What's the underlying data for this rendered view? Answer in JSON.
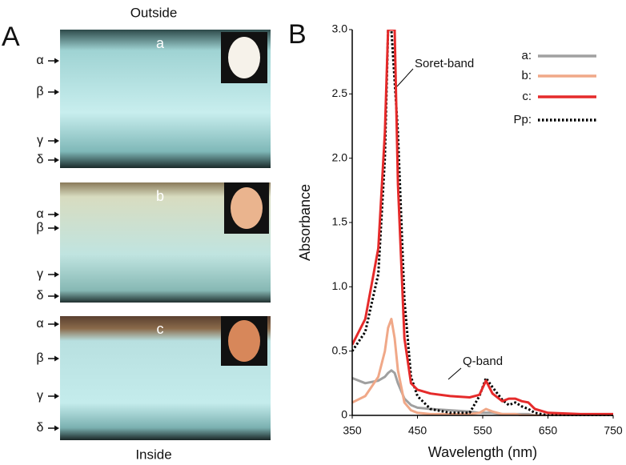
{
  "panel_a": {
    "panel_label": "A",
    "top_label": "Outside",
    "bottom_label": "Inside",
    "samples": [
      {
        "label": "a",
        "layers": [
          "α",
          "β",
          "γ",
          "δ"
        ]
      },
      {
        "label": "b",
        "layers": [
          "α",
          "β",
          "γ",
          "δ"
        ]
      },
      {
        "label": "c",
        "layers": [
          "α",
          "β",
          "γ",
          "δ"
        ]
      }
    ]
  },
  "chart_data": {
    "type": "line",
    "panel_label": "B",
    "x_label": "Wavelength (nm)",
    "y_label": "Absorbance",
    "x": [
      350,
      370,
      390,
      400,
      405,
      410,
      415,
      420,
      430,
      440,
      450,
      470,
      500,
      530,
      545,
      555,
      565,
      580,
      590,
      600,
      610,
      620,
      630,
      650,
      700,
      750
    ],
    "xlim": [
      350,
      750
    ],
    "xticks": [
      350,
      450,
      550,
      650,
      750
    ],
    "ylim": [
      0,
      3
    ],
    "yticks": [
      0,
      0.5,
      {
        "value": 1,
        "label": "1.0"
      },
      1.5,
      {
        "value": 2,
        "label": "2.0"
      },
      2.5,
      {
        "value": 3,
        "label": "3.0"
      }
    ],
    "annotations": [
      "Soret-band",
      "Q-band"
    ],
    "legend": "upper right",
    "series": [
      {
        "name": "a:",
        "color": "#a0a0a0",
        "line_style": "solid",
        "values": [
          0.29,
          0.25,
          0.27,
          0.3,
          0.33,
          0.35,
          0.33,
          0.25,
          0.13,
          0.08,
          0.06,
          0.05,
          0.04,
          0.03,
          0.02,
          0.02,
          0.02,
          0.01,
          0.01,
          0.01,
          0.01,
          0.01,
          0,
          0,
          0,
          0
        ]
      },
      {
        "name": "b:",
        "color": "#f0a888",
        "line_style": "solid",
        "values": [
          0.1,
          0.15,
          0.3,
          0.5,
          0.68,
          0.75,
          0.6,
          0.35,
          0.1,
          0.04,
          0.02,
          0.01,
          0.01,
          0.01,
          0.02,
          0.05,
          0.03,
          0.01,
          0.01,
          0.01,
          0,
          0,
          0,
          0,
          0,
          0
        ]
      },
      {
        "name": "c:",
        "color": "#e52a2a",
        "line_style": "solid",
        "values": [
          0.55,
          0.75,
          1.3,
          2.2,
          3.0,
          3.0,
          3.0,
          1.8,
          0.6,
          0.25,
          0.2,
          0.17,
          0.15,
          0.14,
          0.16,
          0.27,
          0.17,
          0.11,
          0.13,
          0.13,
          0.11,
          0.1,
          0.05,
          0.02,
          0.01,
          0.01
        ]
      },
      {
        "name": "Pp:",
        "color": "#000000",
        "line_style": "dotted",
        "values": [
          0.5,
          0.65,
          1.1,
          2.0,
          3.0,
          3.0,
          2.6,
          2.2,
          0.9,
          0.3,
          0.15,
          0.05,
          0.02,
          0.02,
          0.15,
          0.29,
          0.22,
          0.12,
          0.08,
          0.1,
          0.07,
          0.05,
          0.02,
          0,
          0,
          0
        ]
      }
    ]
  }
}
